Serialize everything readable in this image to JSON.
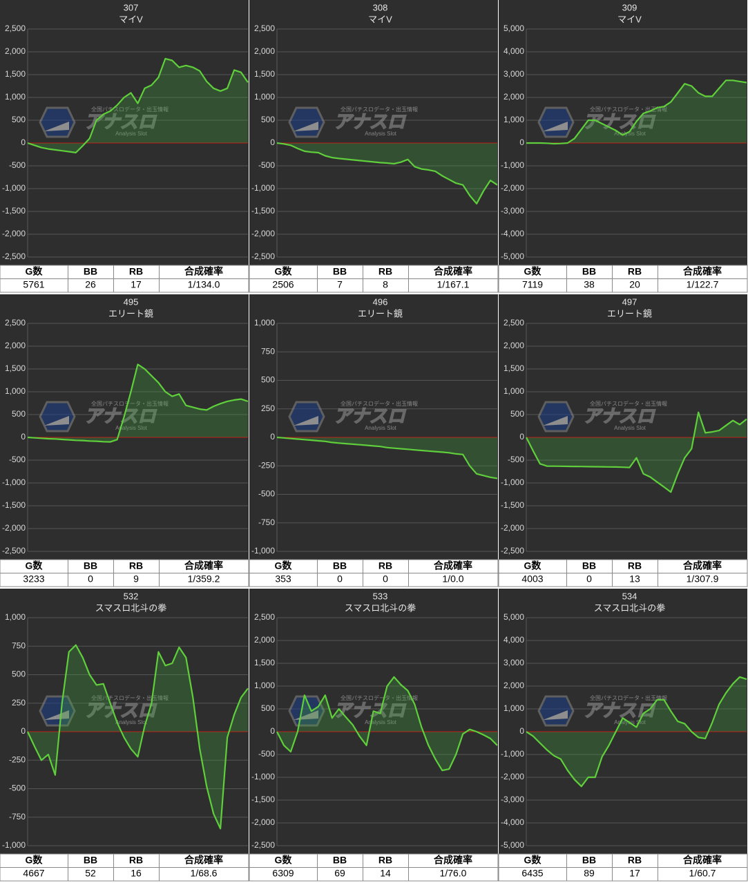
{
  "watermark": {
    "title": "アナスロ",
    "subtitle": "Analysis Slot",
    "caption": "全国パチスロデータ・出玉情報"
  },
  "chart_data": [
    {
      "type": "line",
      "title": "307",
      "subtitle": "マイV",
      "ylim": [
        -2500,
        2500
      ],
      "yticks": [
        {
          "value": -2500,
          "label": "-2,500"
        },
        {
          "value": -2000,
          "label": "-2,000"
        },
        {
          "value": -1500,
          "label": "-1,500"
        },
        {
          "value": -1000,
          "label": "-1,000"
        },
        -500,
        0,
        500,
        {
          "value": 1000,
          "label": "1,000"
        },
        {
          "value": 1500,
          "label": "1,500"
        },
        {
          "value": 2000,
          "label": "2,000"
        },
        {
          "value": 2500,
          "label": "2,500"
        }
      ],
      "grid": true,
      "color": "#5fcf3c",
      "values": [
        0,
        -50,
        -100,
        -130,
        -150,
        -170,
        -190,
        -210,
        -60,
        100,
        500,
        630,
        700,
        830,
        1000,
        1100,
        870,
        1200,
        1270,
        1440,
        1850,
        1810,
        1660,
        1700,
        1660,
        1580,
        1350,
        1200,
        1140,
        1200,
        1600,
        1550,
        1330
      ],
      "table": {
        "headers": [
          "G数",
          "BB",
          "RB",
          "合成確率"
        ],
        "values": [
          5761,
          26,
          17,
          "1/134.0"
        ]
      }
    },
    {
      "type": "line",
      "title": "308",
      "subtitle": "マイV",
      "ylim": [
        -2500,
        2500
      ],
      "yticks": [
        {
          "value": -2500,
          "label": "-2,500"
        },
        {
          "value": -2000,
          "label": "-2,000"
        },
        {
          "value": -1500,
          "label": "-1,500"
        },
        {
          "value": -1000,
          "label": "-1,000"
        },
        -500,
        0,
        500,
        {
          "value": 1000,
          "label": "1,000"
        },
        {
          "value": 1500,
          "label": "1,500"
        },
        {
          "value": 2000,
          "label": "2,000"
        },
        {
          "value": 2500,
          "label": "2,500"
        }
      ],
      "grid": true,
      "color": "#5fcf3c",
      "values": [
        0,
        -20,
        -50,
        -120,
        -180,
        -200,
        -210,
        -280,
        -320,
        -340,
        -355,
        -370,
        -385,
        -400,
        -415,
        -430,
        -440,
        -455,
        -420,
        -360,
        -520,
        -570,
        -590,
        -620,
        -720,
        -800,
        -880,
        -920,
        -1150,
        -1330,
        -1050,
        -820,
        -920
      ],
      "table": {
        "headers": [
          "G数",
          "BB",
          "RB",
          "合成確率"
        ],
        "values": [
          2506,
          7,
          8,
          "1/167.1"
        ]
      }
    },
    {
      "type": "line",
      "title": "309",
      "subtitle": "マイV",
      "ylim": [
        -5000,
        5000
      ],
      "yticks": [
        {
          "value": -5000,
          "label": "-5,000"
        },
        {
          "value": -4000,
          "label": "-4,000"
        },
        {
          "value": -3000,
          "label": "-3,000"
        },
        {
          "value": -2000,
          "label": "-2,000"
        },
        {
          "value": -1000,
          "label": "-1,000"
        },
        0,
        {
          "value": 1000,
          "label": "1,000"
        },
        {
          "value": 2000,
          "label": "2,000"
        },
        {
          "value": 3000,
          "label": "3,000"
        },
        {
          "value": 4000,
          "label": "4,000"
        },
        {
          "value": 5000,
          "label": "5,000"
        }
      ],
      "grid": true,
      "color": "#5fcf3c",
      "values": [
        0,
        0,
        0,
        -10,
        -30,
        -20,
        0,
        200,
        600,
        1000,
        1000,
        850,
        700,
        550,
        350,
        500,
        950,
        1300,
        1400,
        1550,
        1600,
        1800,
        2200,
        2600,
        2500,
        2200,
        2050,
        2050,
        2400,
        2750,
        2750,
        2700,
        2650
      ],
      "table": {
        "headers": [
          "G数",
          "BB",
          "RB",
          "合成確率"
        ],
        "values": [
          7119,
          38,
          20,
          "1/122.7"
        ]
      }
    },
    {
      "type": "line",
      "title": "495",
      "subtitle": "エリート鏡",
      "ylim": [
        -2500,
        2500
      ],
      "yticks": [
        {
          "value": -2500,
          "label": "-2,500"
        },
        {
          "value": -2000,
          "label": "-2,000"
        },
        {
          "value": -1500,
          "label": "-1,500"
        },
        {
          "value": -1000,
          "label": "-1,000"
        },
        -500,
        0,
        500,
        {
          "value": 1000,
          "label": "1,000"
        },
        {
          "value": 1500,
          "label": "1,500"
        },
        {
          "value": 2000,
          "label": "2,000"
        },
        {
          "value": 2500,
          "label": "2,500"
        }
      ],
      "grid": true,
      "color": "#5fcf3c",
      "values": [
        0,
        -10,
        -20,
        -30,
        -35,
        -45,
        -55,
        -65,
        -70,
        -80,
        -85,
        -95,
        -100,
        -50,
        450,
        1000,
        1600,
        1500,
        1350,
        1200,
        1000,
        900,
        950,
        700,
        660,
        620,
        600,
        680,
        740,
        790,
        820,
        840,
        790
      ],
      "table": {
        "headers": [
          "G数",
          "BB",
          "RB",
          "合成確率"
        ],
        "values": [
          3233,
          0,
          9,
          "1/359.2"
        ]
      }
    },
    {
      "type": "line",
      "title": "496",
      "subtitle": "エリート鏡",
      "ylim": [
        -1000,
        1000
      ],
      "yticks": [
        {
          "value": -1000,
          "label": "-1,000"
        },
        -750,
        -500,
        -250,
        0,
        250,
        500,
        750,
        {
          "value": 1000,
          "label": "1,000"
        }
      ],
      "grid": true,
      "color": "#5fcf3c",
      "values": [
        0,
        -5,
        -10,
        -15,
        -20,
        -25,
        -30,
        -35,
        -45,
        -50,
        -55,
        -60,
        -65,
        -70,
        -75,
        -80,
        -90,
        -95,
        -100,
        -105,
        -110,
        -115,
        -120,
        -125,
        -130,
        -135,
        -145,
        -150,
        -250,
        -320,
        -335,
        -350,
        -360
      ],
      "table": {
        "headers": [
          "G数",
          "BB",
          "RB",
          "合成確率"
        ],
        "values": [
          353,
          0,
          0,
          "1/0.0"
        ]
      }
    },
    {
      "type": "line",
      "title": "497",
      "subtitle": "エリート鏡",
      "ylim": [
        -2500,
        2500
      ],
      "yticks": [
        {
          "value": -2500,
          "label": "-2,500"
        },
        {
          "value": -2000,
          "label": "-2,000"
        },
        {
          "value": -1500,
          "label": "-1,500"
        },
        {
          "value": -1000,
          "label": "-1,000"
        },
        -500,
        0,
        500,
        {
          "value": 1000,
          "label": "1,000"
        },
        {
          "value": 1500,
          "label": "1,500"
        },
        {
          "value": 2000,
          "label": "2,000"
        },
        {
          "value": 2500,
          "label": "2,500"
        }
      ],
      "grid": true,
      "color": "#5fcf3c",
      "values": [
        0,
        -300,
        -580,
        -630,
        -632,
        -634,
        -636,
        -638,
        -640,
        -642,
        -644,
        -646,
        -648,
        -650,
        -655,
        -660,
        -450,
        -800,
        -870,
        -980,
        -1090,
        -1200,
        -800,
        -450,
        -250,
        550,
        100,
        120,
        150,
        260,
        370,
        280,
        400
      ],
      "table": {
        "headers": [
          "G数",
          "BB",
          "RB",
          "合成確率"
        ],
        "values": [
          4003,
          0,
          13,
          "1/307.9"
        ]
      }
    },
    {
      "type": "line",
      "title": "532",
      "subtitle": "スマスロ北斗の拳",
      "ylim": [
        -1000,
        1000
      ],
      "yticks": [
        {
          "value": -1000,
          "label": "-1,000"
        },
        -750,
        -500,
        -250,
        0,
        250,
        500,
        750,
        {
          "value": 1000,
          "label": "1,000"
        }
      ],
      "grid": true,
      "color": "#5fcf3c",
      "values": [
        0,
        -130,
        -250,
        -200,
        -380,
        250,
        700,
        760,
        650,
        500,
        410,
        420,
        250,
        80,
        -50,
        -150,
        -220,
        50,
        250,
        700,
        580,
        600,
        740,
        650,
        300,
        -150,
        -480,
        -720,
        -850,
        -50,
        150,
        300,
        380
      ],
      "table": {
        "headers": [
          "G数",
          "BB",
          "RB",
          "合成確率"
        ],
        "values": [
          4667,
          52,
          16,
          "1/68.6"
        ]
      }
    },
    {
      "type": "line",
      "title": "533",
      "subtitle": "スマスロ北斗の拳",
      "ylim": [
        -2500,
        2500
      ],
      "yticks": [
        {
          "value": -2500,
          "label": "-2,500"
        },
        {
          "value": -2000,
          "label": "-2,000"
        },
        {
          "value": -1500,
          "label": "-1,500"
        },
        {
          "value": -1000,
          "label": "-1,000"
        },
        -500,
        0,
        500,
        {
          "value": 1000,
          "label": "1,000"
        },
        {
          "value": 1500,
          "label": "1,500"
        },
        {
          "value": 2000,
          "label": "2,000"
        },
        {
          "value": 2500,
          "label": "2,500"
        }
      ],
      "grid": true,
      "color": "#5fcf3c",
      "values": [
        0,
        -300,
        -440,
        0,
        800,
        450,
        550,
        800,
        300,
        500,
        320,
        150,
        -100,
        -300,
        450,
        400,
        1000,
        1200,
        1030,
        900,
        600,
        100,
        -300,
        -600,
        -850,
        -820,
        -500,
        -50,
        50,
        0,
        -70,
        -150,
        -300
      ],
      "table": {
        "headers": [
          "G数",
          "BB",
          "RB",
          "合成確率"
        ],
        "values": [
          6309,
          69,
          14,
          "1/76.0"
        ]
      }
    },
    {
      "type": "line",
      "title": "534",
      "subtitle": "スマスロ北斗の拳",
      "ylim": [
        -5000,
        5000
      ],
      "yticks": [
        {
          "value": -5000,
          "label": "-5,000"
        },
        {
          "value": -4000,
          "label": "-4,000"
        },
        {
          "value": -3000,
          "label": "-3,000"
        },
        {
          "value": -2000,
          "label": "-2,000"
        },
        {
          "value": -1000,
          "label": "-1,000"
        },
        0,
        {
          "value": 1000,
          "label": "1,000"
        },
        {
          "value": 2000,
          "label": "2,000"
        },
        {
          "value": 3000,
          "label": "3,000"
        },
        {
          "value": 4000,
          "label": "4,000"
        },
        {
          "value": 5000,
          "label": "5,000"
        }
      ],
      "grid": true,
      "color": "#5fcf3c",
      "values": [
        0,
        -200,
        -500,
        -800,
        -1050,
        -1200,
        -1700,
        -2100,
        -2400,
        -2000,
        -2000,
        -1100,
        -600,
        0,
        600,
        400,
        200,
        800,
        1000,
        1400,
        1400,
        900,
        450,
        350,
        0,
        -250,
        -300,
        400,
        1200,
        1700,
        2100,
        2400,
        2300
      ],
      "table": {
        "headers": [
          "G数",
          "BB",
          "RB",
          "合成確率"
        ],
        "values": [
          6435,
          89,
          17,
          "1/60.7"
        ]
      }
    }
  ]
}
